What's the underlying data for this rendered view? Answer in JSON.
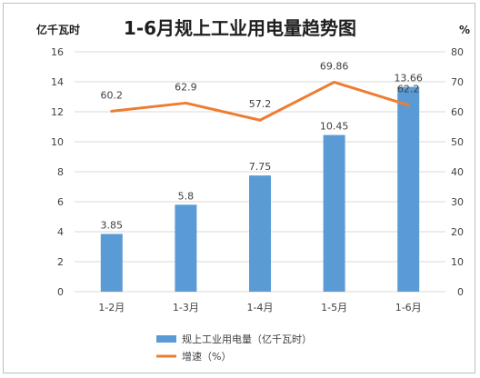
{
  "chart_data": {
    "type": "bar",
    "title": "1-6月规上工业用电量趋势图",
    "categories": [
      "1-2月",
      "1-3月",
      "1-4月",
      "1-5月",
      "1-6月"
    ],
    "left_axis": {
      "unit": "亿千瓦时",
      "ylim": [
        0,
        16
      ],
      "ticks": [
        "0",
        "2",
        "4",
        "6",
        "8",
        "10",
        "12",
        "14",
        "16"
      ]
    },
    "right_axis": {
      "unit": "%",
      "ylim": [
        0,
        80
      ],
      "ticks": [
        "0",
        "10",
        "20",
        "30",
        "40",
        "50",
        "60",
        "70",
        "80"
      ]
    },
    "series": [
      {
        "name": "规上工业用电量（亿千瓦时）",
        "type": "bar",
        "axis": "left",
        "color": "#5b9bd5",
        "values": [
          3.85,
          5.8,
          7.75,
          10.45,
          13.66
        ],
        "labels": [
          "3.85",
          "5.8",
          "7.75",
          "10.45",
          "13.66"
        ]
      },
      {
        "name": "增速（%）",
        "type": "line",
        "axis": "right",
        "color": "#ed7d31",
        "values": [
          60.2,
          62.9,
          57.2,
          69.86,
          62.2
        ],
        "labels": [
          "60.2",
          "62.9",
          "57.2",
          "69.86",
          "62.2"
        ]
      }
    ],
    "grid": true,
    "legend_position": "bottom-left"
  }
}
